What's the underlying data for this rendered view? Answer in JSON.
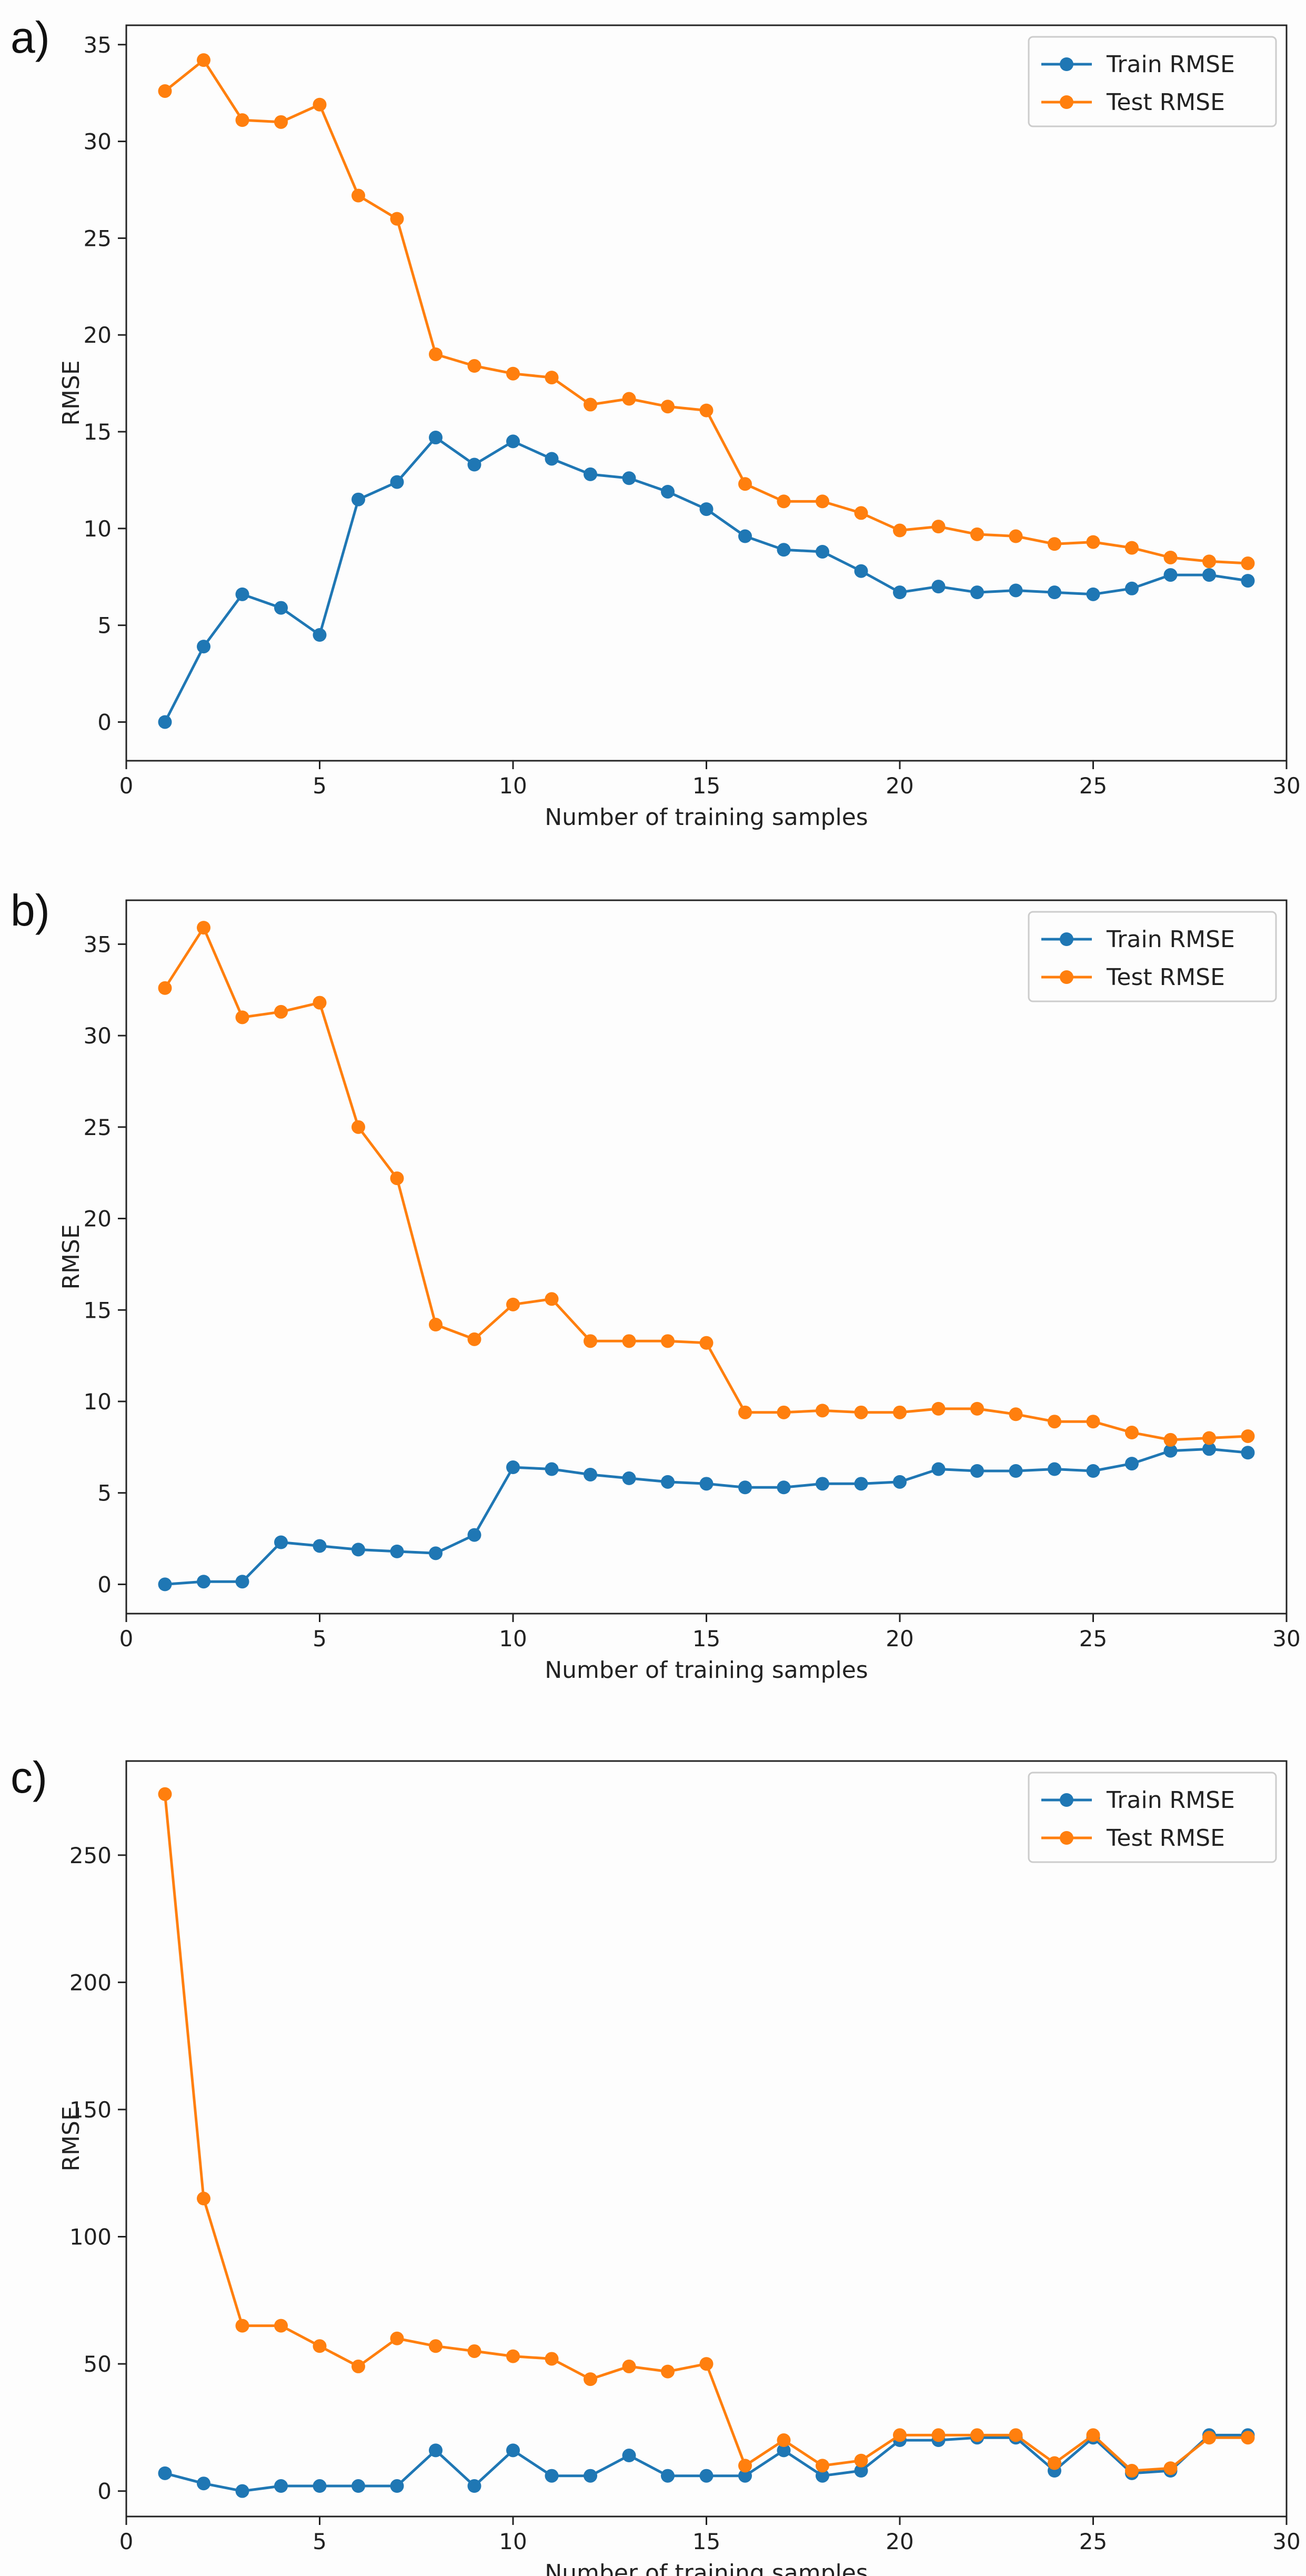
{
  "chart_data": [
    {
      "panel": "a)",
      "type": "line",
      "xlabel": "Number of training samples",
      "ylabel": "RMSE",
      "xlim": [
        0,
        30
      ],
      "ylim": [
        -2,
        36
      ],
      "xticks": [
        0,
        5,
        10,
        15,
        20,
        25,
        30
      ],
      "yticks": [
        0,
        5,
        10,
        15,
        20,
        25,
        30,
        35
      ],
      "grid": false,
      "legend": "top-right",
      "x": [
        1,
        2,
        3,
        4,
        5,
        6,
        7,
        8,
        9,
        10,
        11,
        12,
        13,
        14,
        15,
        16,
        17,
        18,
        19,
        20,
        21,
        22,
        23,
        24,
        25,
        26,
        27,
        28,
        29
      ],
      "series": [
        {
          "name": "Train RMSE",
          "color": "#1f77b4",
          "values": [
            0.0,
            3.9,
            6.6,
            5.9,
            4.5,
            11.5,
            12.4,
            14.7,
            13.3,
            14.5,
            13.6,
            12.8,
            12.6,
            11.9,
            11.0,
            9.6,
            8.9,
            8.8,
            7.8,
            6.7,
            7.0,
            6.7,
            6.8,
            6.7,
            6.6,
            6.9,
            7.6,
            7.6,
            7.3
          ]
        },
        {
          "name": "Test RMSE",
          "color": "#ff7f0e",
          "values": [
            32.6,
            34.2,
            31.1,
            31.0,
            31.9,
            27.2,
            26.0,
            19.0,
            18.4,
            18.0,
            17.8,
            16.4,
            16.7,
            16.3,
            16.1,
            12.3,
            11.4,
            11.4,
            10.8,
            9.9,
            10.1,
            9.7,
            9.6,
            9.2,
            9.3,
            9.0,
            8.5,
            8.3,
            8.2
          ]
        }
      ]
    },
    {
      "panel": "b)",
      "type": "line",
      "xlabel": "Number of training samples",
      "ylabel": "RMSE",
      "xlim": [
        0,
        30
      ],
      "ylim": [
        -1.6,
        37.4
      ],
      "xticks": [
        0,
        5,
        10,
        15,
        20,
        25,
        30
      ],
      "yticks": [
        0,
        5,
        10,
        15,
        20,
        25,
        30,
        35
      ],
      "grid": false,
      "legend": "top-right",
      "x": [
        1,
        2,
        3,
        4,
        5,
        6,
        7,
        8,
        9,
        10,
        11,
        12,
        13,
        14,
        15,
        16,
        17,
        18,
        19,
        20,
        21,
        22,
        23,
        24,
        25,
        26,
        27,
        28,
        29
      ],
      "series": [
        {
          "name": "Train RMSE",
          "color": "#1f77b4",
          "values": [
            0.0,
            0.15,
            0.15,
            2.3,
            2.1,
            1.9,
            1.8,
            1.7,
            2.7,
            6.4,
            6.3,
            6.0,
            5.8,
            5.6,
            5.5,
            5.3,
            5.3,
            5.5,
            5.5,
            5.6,
            6.3,
            6.2,
            6.2,
            6.3,
            6.2,
            6.6,
            7.3,
            7.4,
            7.2
          ]
        },
        {
          "name": "Test RMSE",
          "color": "#ff7f0e",
          "values": [
            32.6,
            35.9,
            31.0,
            31.3,
            31.8,
            25.0,
            22.2,
            14.2,
            13.4,
            15.3,
            15.6,
            13.3,
            13.3,
            13.3,
            13.2,
            9.4,
            9.4,
            9.5,
            9.4,
            9.4,
            9.6,
            9.6,
            9.3,
            8.9,
            8.9,
            8.3,
            7.9,
            8.0,
            8.1
          ]
        }
      ]
    },
    {
      "panel": "c)",
      "type": "line",
      "xlabel": "Number of training samples",
      "ylabel": "RMSE",
      "xlim": [
        0,
        30
      ],
      "ylim": [
        -10,
        287
      ],
      "xticks": [
        0,
        5,
        10,
        15,
        20,
        25,
        30
      ],
      "yticks": [
        0,
        50,
        100,
        150,
        200,
        250
      ],
      "grid": false,
      "legend": "top-right",
      "x": [
        1,
        2,
        3,
        4,
        5,
        6,
        7,
        8,
        9,
        10,
        11,
        12,
        13,
        14,
        15,
        16,
        17,
        18,
        19,
        20,
        21,
        22,
        23,
        24,
        25,
        26,
        27,
        28,
        29
      ],
      "series": [
        {
          "name": "Train RMSE",
          "color": "#1f77b4",
          "values": [
            7,
            3,
            0,
            2,
            2,
            2,
            2,
            16,
            2,
            16,
            6,
            6,
            14,
            6,
            6,
            6,
            16,
            6,
            8,
            20,
            20,
            21,
            21,
            8,
            21,
            7,
            8,
            22,
            22
          ]
        },
        {
          "name": "Test RMSE",
          "color": "#ff7f0e",
          "values": [
            274,
            115,
            65,
            65,
            57,
            49,
            60,
            57,
            55,
            53,
            52,
            44,
            49,
            47,
            50,
            10,
            20,
            10,
            12,
            22,
            22,
            22,
            22,
            11,
            22,
            8,
            9,
            21,
            21
          ]
        }
      ]
    }
  ]
}
